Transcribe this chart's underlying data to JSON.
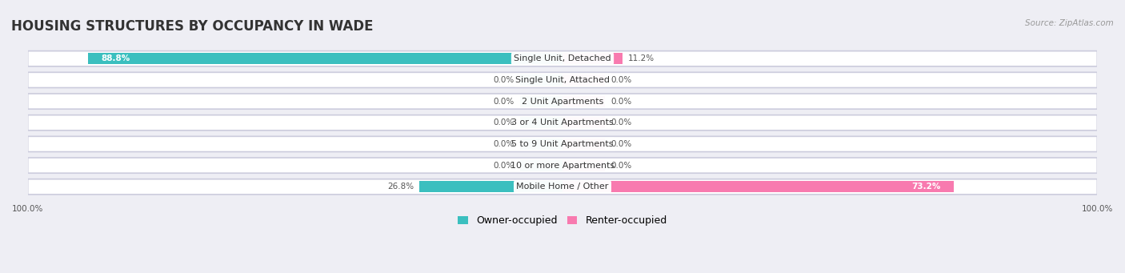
{
  "title": "HOUSING STRUCTURES BY OCCUPANCY IN WADE",
  "source": "Source: ZipAtlas.com",
  "categories": [
    "Single Unit, Detached",
    "Single Unit, Attached",
    "2 Unit Apartments",
    "3 or 4 Unit Apartments",
    "5 to 9 Unit Apartments",
    "10 or more Apartments",
    "Mobile Home / Other"
  ],
  "owner_pct": [
    88.8,
    0.0,
    0.0,
    0.0,
    0.0,
    0.0,
    26.8
  ],
  "renter_pct": [
    11.2,
    0.0,
    0.0,
    0.0,
    0.0,
    0.0,
    73.2
  ],
  "owner_color": "#3BBFBF",
  "renter_color": "#F87AAF",
  "owner_label": "Owner-occupied",
  "renter_label": "Renter-occupied",
  "bg_color": "#eeeef4",
  "xlim": [
    -100,
    100
  ],
  "title_fontsize": 12,
  "label_fontsize": 8,
  "pct_fontsize": 7.5,
  "legend_fontsize": 9,
  "zero_stub": 8.0
}
